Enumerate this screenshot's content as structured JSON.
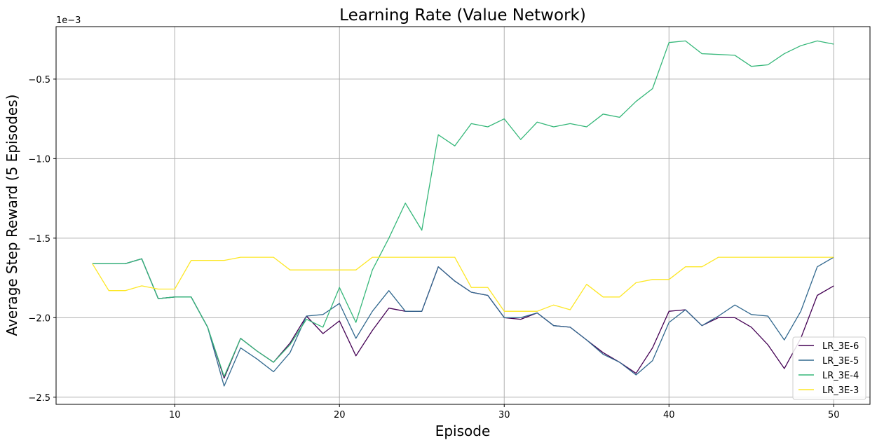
{
  "chart_data": {
    "type": "line",
    "title": "Learning Rate (Value Network)",
    "xlabel": "Episode",
    "ylabel": "Average Step Reward (5 Episodes)",
    "offset_text": "1e−3",
    "xlim": [
      2.8,
      52.2
    ],
    "ylim": [
      -2.545,
      -0.17
    ],
    "x_ticks": [
      10,
      20,
      30,
      40,
      50
    ],
    "x_tick_labels": [
      "10",
      "20",
      "30",
      "40",
      "50"
    ],
    "y_ticks": [
      -0.5,
      -1.0,
      -1.5,
      -2.0,
      -2.5
    ],
    "y_tick_labels": [
      "−0.5",
      "−1.0",
      "−1.5",
      "−2.0",
      "−2.5"
    ],
    "grid": true,
    "legend_position": "bottom-right",
    "x": [
      5,
      6,
      7,
      8,
      9,
      10,
      11,
      12,
      13,
      14,
      15,
      16,
      17,
      18,
      19,
      20,
      21,
      22,
      23,
      24,
      25,
      26,
      27,
      28,
      29,
      30,
      31,
      32,
      33,
      34,
      35,
      36,
      37,
      38,
      39,
      40,
      41,
      42,
      43,
      44,
      45,
      46,
      47,
      48,
      49,
      50
    ],
    "series": [
      {
        "name": "LR_3E-6",
        "color": "#440154",
        "values": [
          -1.66,
          -1.66,
          -1.66,
          -1.63,
          -1.88,
          -1.87,
          -1.87,
          -2.06,
          -2.38,
          -2.13,
          -2.21,
          -2.28,
          -2.16,
          -1.99,
          -2.1,
          -2.02,
          -2.24,
          -2.08,
          -1.94,
          -1.96,
          -1.96,
          -1.68,
          -1.77,
          -1.84,
          -1.86,
          -2.0,
          -2.01,
          -1.97,
          -2.05,
          -2.06,
          -2.14,
          -2.22,
          -2.28,
          -2.35,
          -2.19,
          -1.96,
          -1.95,
          -2.05,
          -2.0,
          -2.0,
          -2.06,
          -2.17,
          -2.32,
          -2.13,
          -1.86,
          -1.8
        ]
      },
      {
        "name": "LR_3E-5",
        "color": "#31688e",
        "values": [
          -1.66,
          -1.66,
          -1.66,
          -1.63,
          -1.88,
          -1.87,
          -1.87,
          -2.06,
          -2.43,
          -2.19,
          -2.26,
          -2.34,
          -2.22,
          -1.99,
          -1.98,
          -1.91,
          -2.13,
          -1.96,
          -1.83,
          -1.96,
          -1.96,
          -1.68,
          -1.77,
          -1.84,
          -1.86,
          -2.0,
          -2.0,
          -1.97,
          -2.05,
          -2.06,
          -2.14,
          -2.23,
          -2.28,
          -2.36,
          -2.27,
          -2.03,
          -1.95,
          -2.05,
          -1.99,
          -1.92,
          -1.98,
          -1.99,
          -2.14,
          -1.96,
          -1.68,
          -1.62
        ]
      },
      {
        "name": "LR_3E-4",
        "color": "#35b779",
        "values": [
          -1.66,
          -1.66,
          -1.66,
          -1.63,
          -1.88,
          -1.87,
          -1.87,
          -2.06,
          -2.37,
          -2.13,
          -2.21,
          -2.28,
          -2.17,
          -2.01,
          -2.06,
          -1.81,
          -2.03,
          -1.7,
          -1.5,
          -1.28,
          -1.45,
          -0.85,
          -0.92,
          -0.78,
          -0.8,
          -0.75,
          -0.88,
          -0.77,
          -0.8,
          -0.78,
          -0.8,
          -0.72,
          -0.74,
          -0.64,
          -0.56,
          -0.27,
          -0.26,
          -0.34,
          -0.345,
          -0.35,
          -0.42,
          -0.41,
          -0.34,
          -0.29,
          -0.26,
          -0.28
        ]
      },
      {
        "name": "LR_3E-3",
        "color": "#fde725",
        "values": [
          -1.66,
          -1.83,
          -1.83,
          -1.8,
          -1.82,
          -1.82,
          -1.64,
          -1.64,
          -1.64,
          -1.62,
          -1.62,
          -1.62,
          -1.7,
          -1.7,
          -1.7,
          -1.7,
          -1.7,
          -1.62,
          -1.62,
          -1.62,
          -1.62,
          -1.62,
          -1.62,
          -1.81,
          -1.81,
          -1.96,
          -1.96,
          -1.96,
          -1.92,
          -1.95,
          -1.79,
          -1.87,
          -1.87,
          -1.78,
          -1.76,
          -1.76,
          -1.68,
          -1.68,
          -1.62,
          -1.62,
          -1.62,
          -1.62,
          -1.62,
          -1.62,
          -1.62,
          -1.62
        ]
      }
    ]
  }
}
